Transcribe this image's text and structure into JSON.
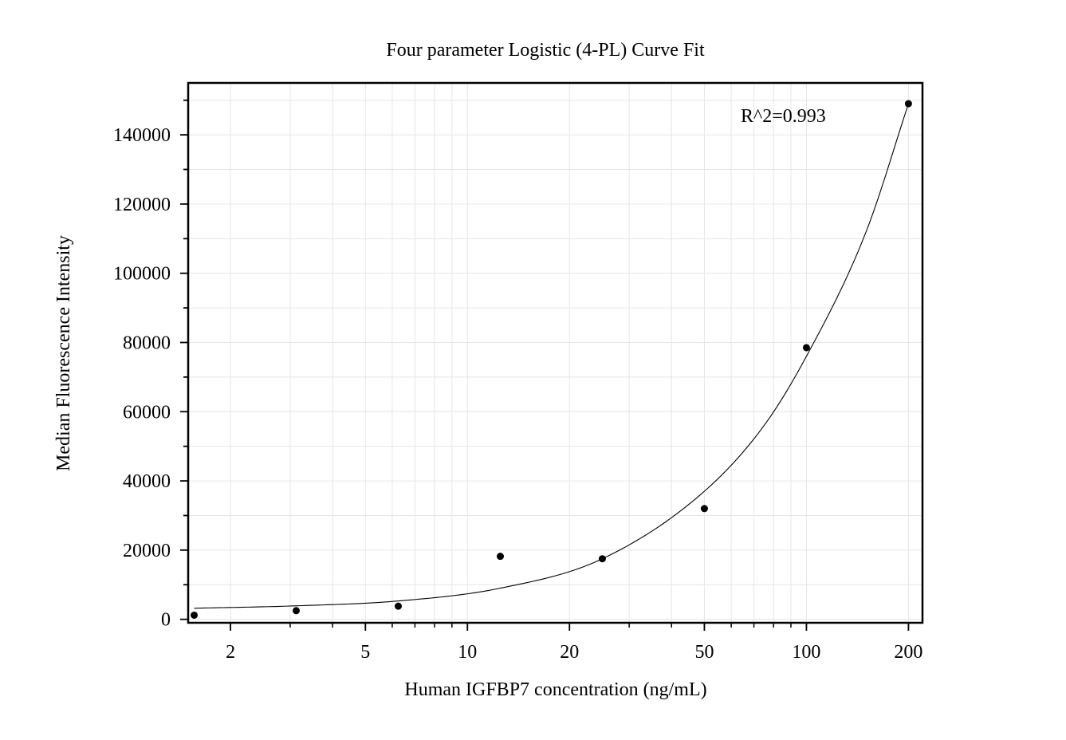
{
  "chart_data": {
    "type": "scatter",
    "title": "Four parameter Logistic (4-PL) Curve Fit",
    "xlabel": "Human IGFBP7 concentration (ng/mL)",
    "ylabel": "Median Fluorescence Intensity",
    "x_scale": "log",
    "xlim": [
      1.5,
      220
    ],
    "ylim": [
      -1000,
      155000
    ],
    "x_ticks": [
      2,
      5,
      10,
      20,
      50,
      100,
      200
    ],
    "x_tick_labels": [
      "2",
      "5",
      "10",
      "20",
      "50",
      "100",
      "200"
    ],
    "y_ticks": [
      0,
      20000,
      40000,
      60000,
      80000,
      100000,
      120000,
      140000
    ],
    "y_tick_labels": [
      "0",
      "20000",
      "40000",
      "60000",
      "80000",
      "100000",
      "120000",
      "140000"
    ],
    "grid": true,
    "annotation": "R^2=0.993",
    "series": [
      {
        "points": [
          {
            "x": 1.5625,
            "y": 1200
          },
          {
            "x": 3.125,
            "y": 2500
          },
          {
            "x": 6.25,
            "y": 3800
          },
          {
            "x": 12.5,
            "y": 18200
          },
          {
            "x": 25,
            "y": 17500
          },
          {
            "x": 50,
            "y": 32000
          },
          {
            "x": 100,
            "y": 78500
          },
          {
            "x": 200,
            "y": 149000
          }
        ]
      }
    ],
    "fit_curve": {
      "model": "4PL",
      "x_range": [
        1.5625,
        200
      ],
      "samples": [
        {
          "x": 1.5625,
          "y": 3200
        },
        {
          "x": 3.125,
          "y": 3900
        },
        {
          "x": 6.25,
          "y": 5300
        },
        {
          "x": 12.5,
          "y": 9000
        },
        {
          "x": 25,
          "y": 17500
        },
        {
          "x": 50,
          "y": 37000
        },
        {
          "x": 75,
          "y": 56000
        },
        {
          "x": 100,
          "y": 76000
        },
        {
          "x": 150,
          "y": 112000
        },
        {
          "x": 200,
          "y": 149000
        }
      ]
    }
  }
}
